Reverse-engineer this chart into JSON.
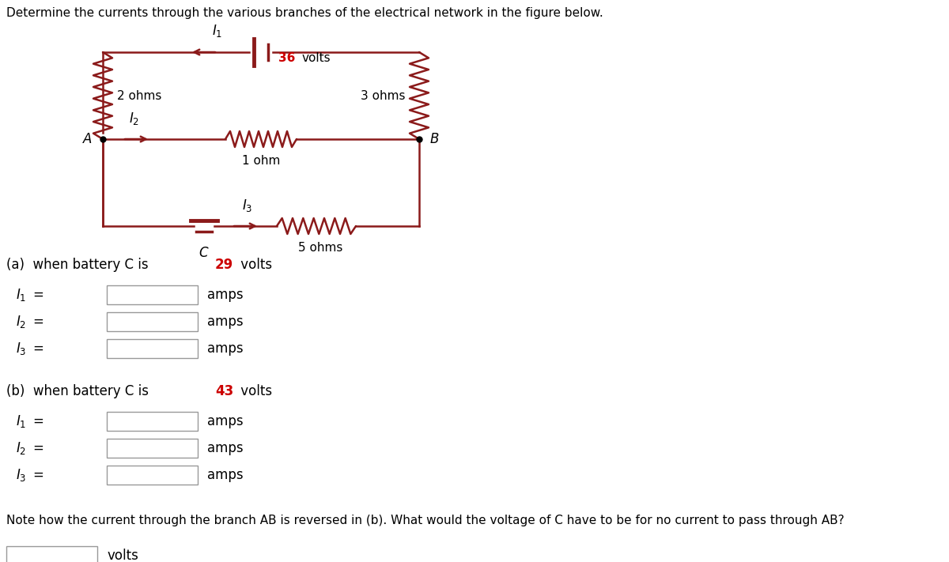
{
  "title": "Determine the currents through the various branches of the electrical network in the figure below.",
  "title_fontsize": 11,
  "bg_color": "#ffffff",
  "circuit_color": "#8b1a1a",
  "text_color": "#000000",
  "red_color": "#cc0000",
  "section_a_text": "(a)  when battery C is ",
  "section_a_volts": "29",
  "section_b_text": "(b)  when battery C is ",
  "section_b_volts": "43",
  "volts_suffix": " volts",
  "amps_suffix": "amps",
  "note_line": "Note how the current through the branch AB is reversed in (b). What would the voltage of C have to be for no current to pass through AB?",
  "circuit": {
    "xl": 1.3,
    "xr": 5.3,
    "yt": 6.45,
    "ymid": 5.35,
    "ybot": 4.25
  }
}
